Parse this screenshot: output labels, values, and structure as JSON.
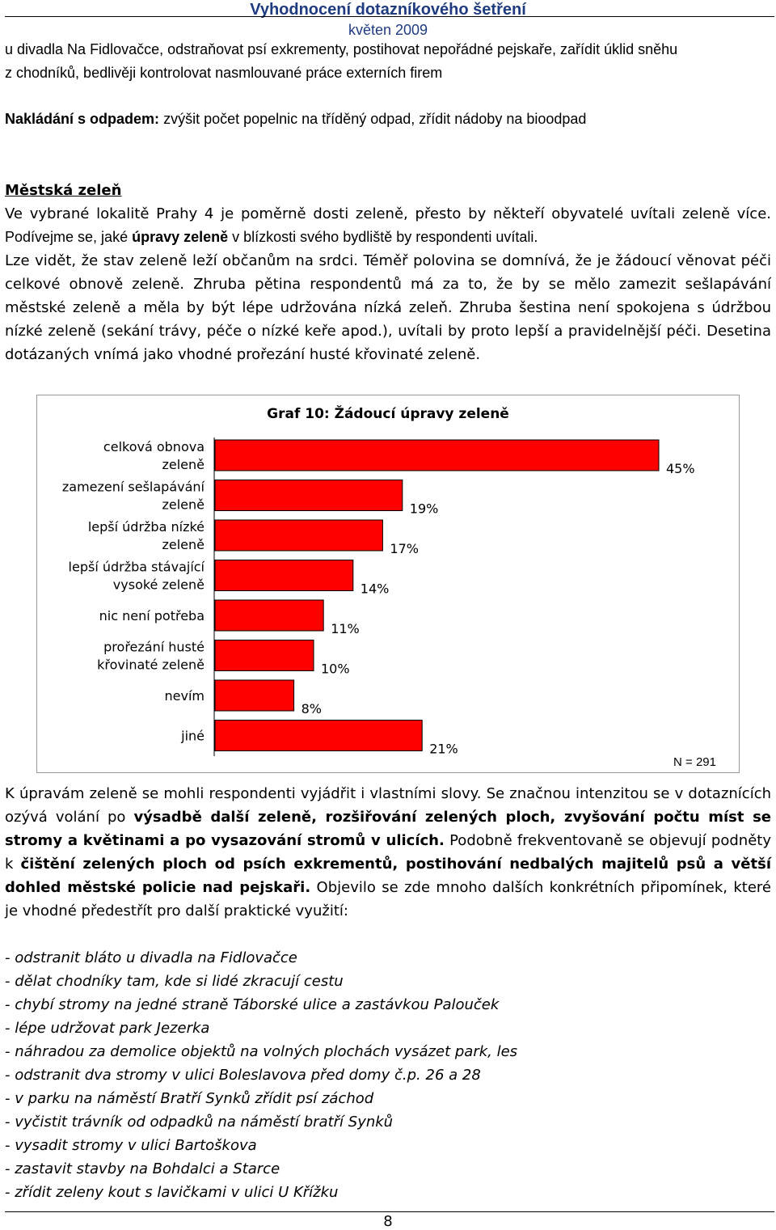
{
  "header": {
    "title": "Vyhodnocení dotazníkového šetření",
    "date": "květen 2009"
  },
  "para_top": {
    "line1": "u divadla Na Fidlovačce, odstraňovat psí exkrementy, postihovat nepořádné pejskaře, zařídit úklid sněhu",
    "line2": "z chodníků, bedlivěji kontrolovat nasmlouvané práce externích firem"
  },
  "waste": {
    "label": "Nakládání s odpadem:",
    "text": " zvýšit počet popelnic na tříděný odpad, zřídit nádoby na bioodpad"
  },
  "section": {
    "heading": "Městská zeleň",
    "intro1": "Ve vybrané lokalitě Prahy 4 je poměrně dosti zeleně, přesto by někteří obyvatelé uvítali zeleně více.",
    "intro2_a": "Podívejme se, jaké ",
    "intro2_b": "úpravy zeleně",
    "intro2_c": " v blízkosti svého bydliště by respondenti uvítali.",
    "body": "Lze vidět, že stav zeleně leží občanům na srdci. Téměř polovina se domnívá, že je žádoucí věnovat péči celkové obnově zeleně. Zhruba pětina respondentů má za to, že by se mělo zamezit sešlapávání městské zeleně a měla by být lépe udržována nízká zeleň. Zhruba šestina není spokojena s údržbou nízké zeleně (sekání trávy, péče o nízké keře apod.), uvítali by proto lepší a pravidelnější péči. Desetina dotázaných vnímá jako vhodné prořezání husté křovinaté zeleně."
  },
  "chart_data": {
    "type": "bar",
    "orientation": "horizontal",
    "title": "Graf 10: Žádoucí úpravy zeleně",
    "categories": [
      [
        "celková obnova",
        "zeleně"
      ],
      [
        "zamezení sešlapávání",
        "zeleně"
      ],
      [
        "lepší údržba nízké",
        "zeleně"
      ],
      [
        "lepší údržba stávající",
        "vysoké zeleně"
      ],
      [
        "nic není potřeba"
      ],
      [
        "prořezání husté",
        "křovinaté zeleně"
      ],
      [
        "nevím"
      ],
      [
        "jiné"
      ]
    ],
    "values": [
      45,
      19,
      17,
      14,
      11,
      10,
      8,
      21
    ],
    "value_labels": [
      "45%",
      "19%",
      "17%",
      "14%",
      "11%",
      "10%",
      "8%",
      "21%"
    ],
    "unit": "%",
    "xlim": [
      0,
      50
    ],
    "bar_color": "#ff0000",
    "note": "N = 291",
    "grid": false,
    "legend": "none"
  },
  "after_chart": {
    "text_a": "K úpravám zeleně se mohli respondenti vyjádřit i vlastními slovy. Se značnou intenzitou se v dotaznících ozývá volání po ",
    "bold_a": "výsadbě další zeleně, rozšiřování zelených ploch, zvyšování počtu míst se stromy a květinami a po vysazování stromů v ulicích.",
    "text_b": " Podobně frekventovaně se objevují podněty k ",
    "bold_b": "čištění zelených ploch od psích exkrementů, postihování nedbalých majitelů psů a větší dohled městské policie nad pejskaři.",
    "text_c": " Objevilo se zde mnoho dalších konkrétních připomínek, které je vhodné předestřít pro další praktické využití:"
  },
  "suggestions": [
    "- odstranit bláto u divadla na Fidlovačce",
    "- dělat chodníky tam, kde si lidé zkracují cestu",
    "- chybí stromy na jedné straně Táborské ulice a zastávkou Palouček",
    "- lépe udržovat park Jezerka",
    "- náhradou za demolice objektů na volných plochách vysázet park, les",
    "- odstranit dva stromy v ulici Boleslavova před domy č.p. 26 a 28",
    "- v parku na náměstí Bratří Synků zřídit psí záchod",
    "- vyčistit trávník od odpadků na náměstí bratří Synků",
    "- vysadit stromy v ulici Bartoškova",
    "- zastavit stavby na Bohdalci a Starce",
    "- zřídit zeleny kout s lavičkami v ulici U Křížku"
  ],
  "page_number": "8"
}
